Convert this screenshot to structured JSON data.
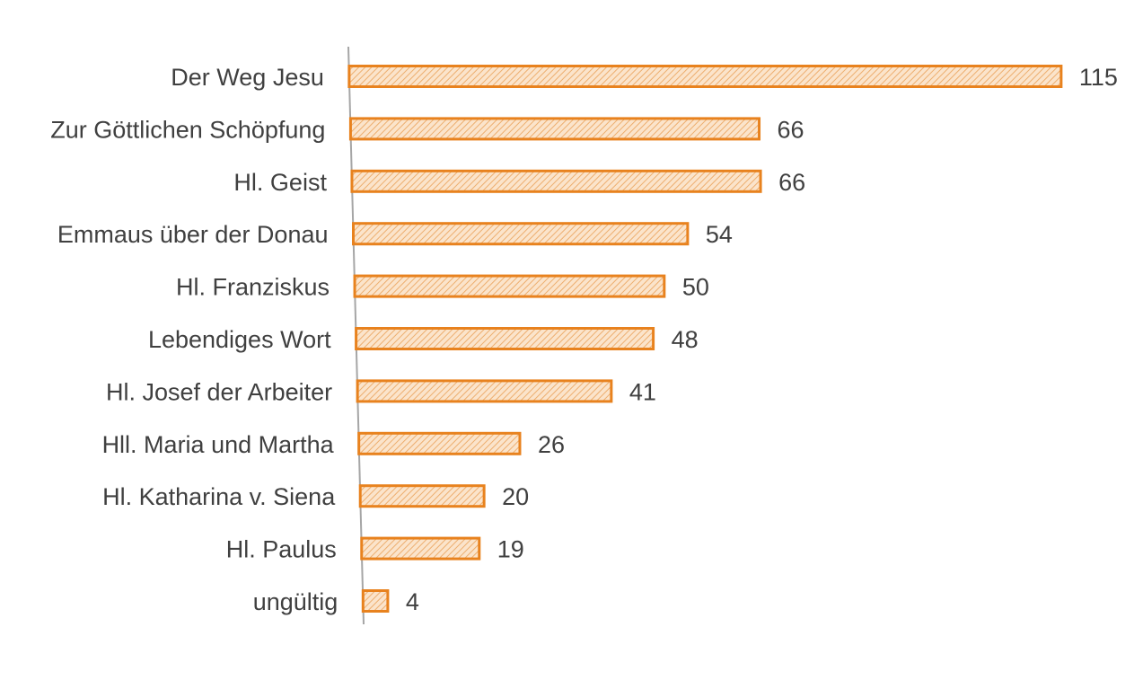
{
  "chart_data": {
    "type": "bar",
    "orientation": "horizontal",
    "categories": [
      "Der Weg Jesu",
      "Zur Göttlichen Schöpfung",
      "Hl. Geist",
      "Emmaus über der Donau",
      "Hl. Franziskus",
      "Lebendiges Wort",
      "Hl. Josef der Arbeiter",
      "Hll. Maria und Martha",
      "Hl. Katharina v. Siena",
      "Hl. Paulus",
      "ungültig"
    ],
    "values": [
      115,
      66,
      66,
      54,
      50,
      48,
      41,
      26,
      20,
      19,
      4
    ],
    "data_labels": [
      "115",
      "66",
      "66",
      "54",
      "50",
      "48",
      "41",
      "26",
      "20",
      "19",
      "4"
    ],
    "xlim": [
      0,
      115
    ],
    "grid": false,
    "legend": "none"
  },
  "colors": {
    "bar_outline": "#E8821E",
    "bar_fill_base": "#FBE4CB",
    "bar_hatch": "#EDAE6F",
    "axis_line": "#A6A6A6",
    "text": "#404040"
  }
}
